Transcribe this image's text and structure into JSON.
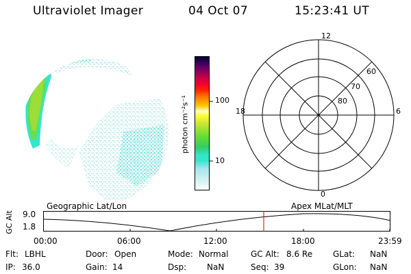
{
  "header": {
    "instrument": "Ultraviolet Imager",
    "date": "04 Oct 07",
    "time": "15:23:41 UT"
  },
  "colorbar": {
    "unit": "photon cm⁻²s⁻¹",
    "ticks": [
      "100",
      "10"
    ],
    "scale": "log"
  },
  "polar_plot": {
    "hours": {
      "top": "12",
      "left": "18",
      "right": "6",
      "bottom": "0"
    },
    "lat_labels": [
      "60",
      "70",
      "80"
    ]
  },
  "timeline": {
    "axis_title": "GC Alt",
    "y_ticks": [
      "9.0",
      "1.8"
    ],
    "left_title": "Geographic Lat/Lon",
    "right_title": "Apex MLat/MLT",
    "x_ticks": [
      "00:00",
      "06:00",
      "12:00",
      "18:00",
      "23:59"
    ],
    "current_marker_color": "#cc0000"
  },
  "info": {
    "filter": {
      "label": "Flt:",
      "value": "LBHL"
    },
    "ip": {
      "label": "IP:",
      "value": "36.0"
    },
    "door": {
      "label": "Door:",
      "value": "Open"
    },
    "gain": {
      "label": "Gain:",
      "value": "14"
    },
    "mode": {
      "label": "Mode:",
      "value": "Normal"
    },
    "dsp": {
      "label": "Dsp:",
      "value": "NaN"
    },
    "gc_alt": {
      "label": "GC Alt:",
      "value": "8.6 Re"
    },
    "seq": {
      "label": "Seq:",
      "value": "39"
    },
    "glat": {
      "label": "GLat:",
      "value": "NaN"
    },
    "glon": {
      "label": "GLon:",
      "value": "NaN"
    }
  },
  "colors": {
    "aurora_bright": "#33cc55",
    "aurora_mid": "#33e6cc",
    "aurora_dim": "#c6eeee",
    "marker": "#cc0000"
  }
}
